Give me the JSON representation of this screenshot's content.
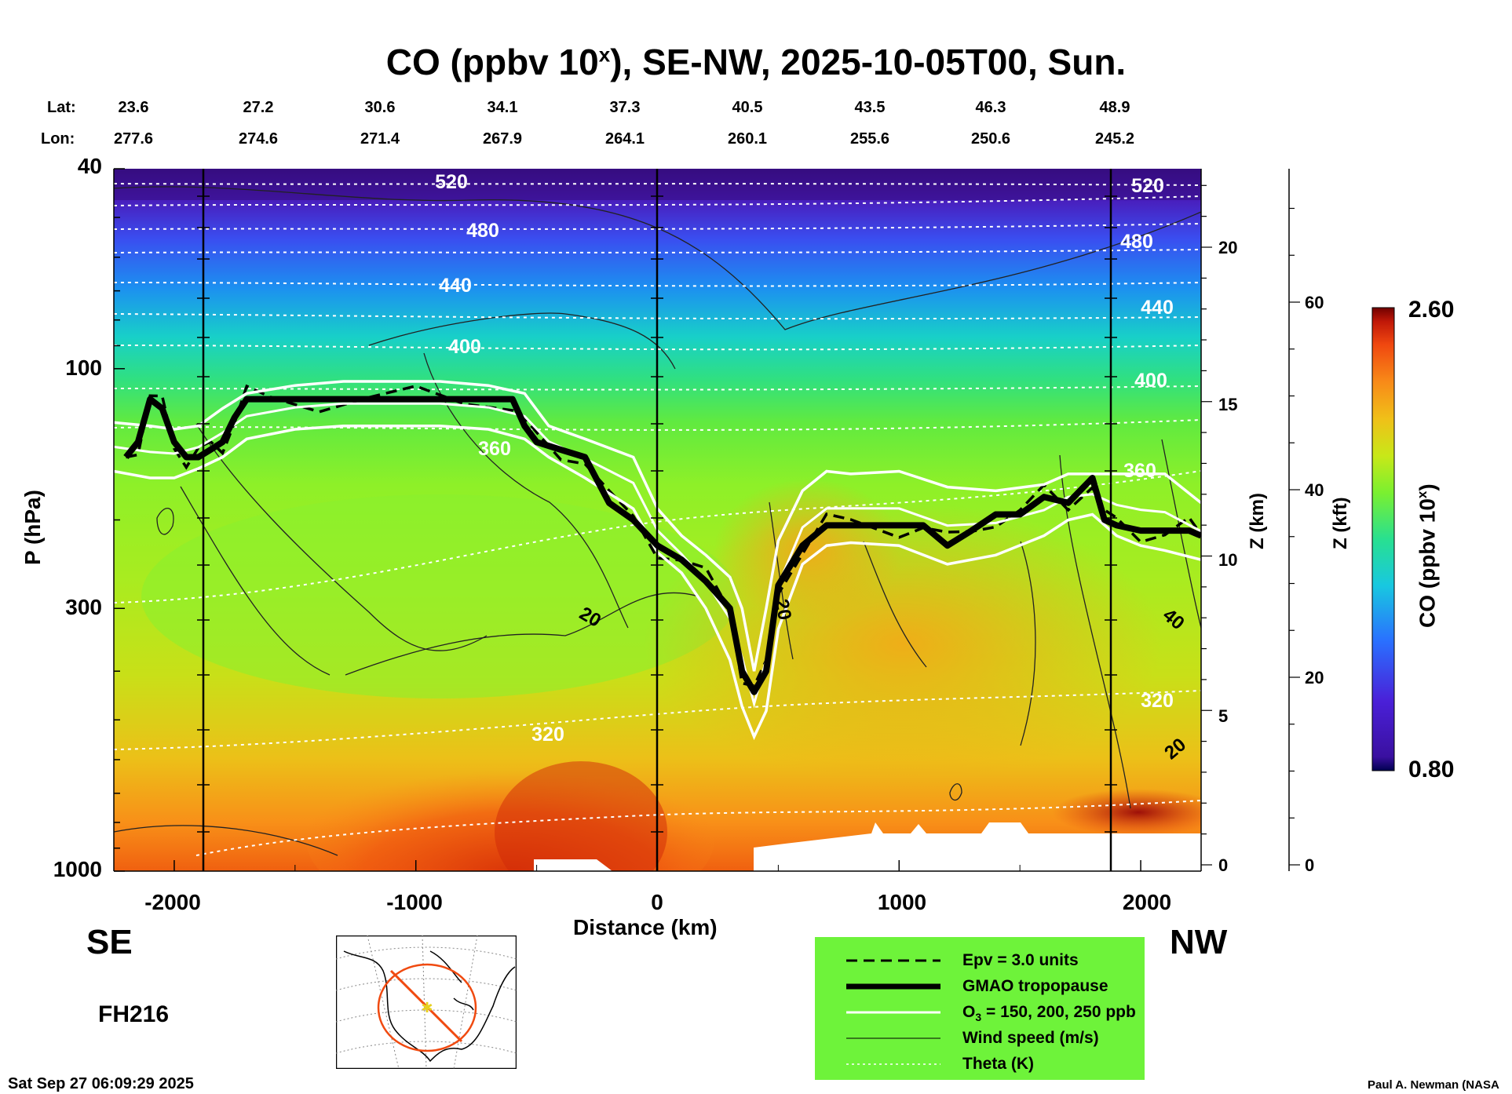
{
  "chart_data": {
    "type": "heatmap",
    "title": "CO (ppbv 10",
    "title_sup": "x",
    "title_rest": "), SE-NW, 2025-10-05T00, Sun.",
    "xlabel": "Distance (km)",
    "ylabel": "P (hPa)",
    "xlim": [
      -2250,
      2250
    ],
    "ylim": [
      1000,
      40
    ],
    "y_scale": "log",
    "x_ticks": [
      "-2000",
      "-1000",
      "0",
      "1000",
      "2000"
    ],
    "y_ticks": [
      "40",
      "100",
      "300",
      "1000"
    ],
    "lat_label": "Lat:",
    "lon_label": "Lon:",
    "lat_values": [
      "23.6",
      "27.2",
      "30.6",
      "34.1",
      "37.3",
      "40.5",
      "43.5",
      "46.3",
      "48.9"
    ],
    "lon_values": [
      "277.6",
      "274.6",
      "271.4",
      "267.9",
      "264.1",
      "260.1",
      "255.6",
      "250.6",
      "245.2"
    ],
    "z_km_label": "Z (km)",
    "z_km_ticks": [
      "20",
      "15",
      "10",
      "5",
      "0"
    ],
    "z_kft_label": "Z (kft)",
    "z_kft_ticks": [
      "60",
      "40",
      "20",
      "0"
    ],
    "colorbar": {
      "label": "CO (ppbv 10",
      "label_sup": "x",
      "label_end": ")",
      "min": "2.60",
      "max_low": "0.80",
      "range": [
        0.8,
        2.6
      ]
    },
    "theta_labels": [
      "520",
      "480",
      "440",
      "400",
      "360",
      "320",
      "520",
      "480",
      "440",
      "400",
      "360",
      "320"
    ],
    "wind_labels": [
      "20",
      "20",
      "40",
      "20"
    ],
    "direction_left": "SE",
    "direction_right": "NW",
    "forecast_hour": "FH216",
    "legend": [
      {
        "label": "Epv = 3.0 units",
        "style": "dashed"
      },
      {
        "label": "GMAO tropopause",
        "style": "thick"
      },
      {
        "label": "O",
        "sub": "3",
        "rest": " = 150, 200, 250 ppb",
        "style": "white"
      },
      {
        "label": "Wind speed (m/s)",
        "style": "thin"
      },
      {
        "label": "Theta (K)",
        "style": "dotted"
      }
    ],
    "tropopause": {
      "x": [
        -2200,
        -2150,
        -2100,
        -2050,
        -2000,
        -1950,
        -1900,
        -1850,
        -1800,
        -1750,
        -1700,
        -1600,
        -1400,
        -1200,
        -1000,
        -800,
        -600,
        -550,
        -500,
        -400,
        -300,
        -200,
        -100,
        0,
        100,
        200,
        300,
        350,
        400,
        450,
        500,
        600,
        700,
        800,
        1000,
        1100,
        1200,
        1300,
        1400,
        1500,
        1600,
        1700,
        1800,
        1850,
        1900,
        2000,
        2100,
        2200,
        2250
      ],
      "p": [
        150,
        140,
        115,
        120,
        140,
        150,
        150,
        145,
        140,
        125,
        115,
        115,
        115,
        115,
        115,
        115,
        115,
        130,
        140,
        145,
        150,
        185,
        200,
        225,
        240,
        265,
        300,
        400,
        440,
        400,
        270,
        225,
        205,
        205,
        205,
        205,
        225,
        210,
        195,
        195,
        180,
        185,
        165,
        200,
        205,
        210,
        210,
        210,
        215
      ]
    },
    "o3_upper": {
      "x": [
        -2250,
        -2100,
        -2000,
        -1900,
        -1800,
        -1700,
        -1500,
        -1300,
        -1100,
        -900,
        -700,
        -550,
        -450,
        -300,
        -100,
        0,
        100,
        200,
        300,
        350,
        400,
        450,
        500,
        600,
        700,
        800,
        1000,
        1200,
        1400,
        1600,
        1700,
        1800,
        1900,
        2000,
        2100,
        2250
      ],
      "p": [
        128,
        130,
        132,
        130,
        120,
        112,
        108,
        106,
        106,
        106,
        108,
        112,
        130,
        138,
        150,
        190,
        215,
        235,
        260,
        300,
        400,
        300,
        220,
        175,
        160,
        162,
        160,
        172,
        175,
        170,
        162,
        162,
        162,
        162,
        162,
        185
      ]
    },
    "o3_lower": {
      "x": [
        -2250,
        -2100,
        -2000,
        -1900,
        -1800,
        -1700,
        -1500,
        -1300,
        -1100,
        -900,
        -700,
        -550,
        -450,
        -300,
        -100,
        0,
        100,
        200,
        300,
        350,
        400,
        450,
        500,
        600,
        700,
        800,
        1000,
        1200,
        1400,
        1600,
        1700,
        1800,
        1900,
        2000,
        2100,
        2250
      ],
      "p": [
        160,
        165,
        165,
        158,
        150,
        138,
        132,
        130,
        130,
        130,
        132,
        138,
        150,
        165,
        190,
        232,
        255,
        300,
        380,
        470,
        540,
        480,
        330,
        245,
        225,
        222,
        225,
        245,
        235,
        215,
        200,
        195,
        215,
        225,
        230,
        240
      ]
    }
  },
  "footer": {
    "date": "Sat Sep 27 06:09:29 2025",
    "credit": "Paul A. Newman (NASA"
  }
}
